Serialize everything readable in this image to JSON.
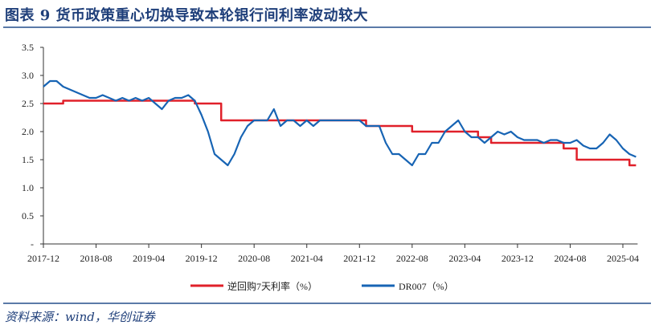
{
  "title": "图表 9   货币政策重心切换导致本轮银行间利率波动较大",
  "source": "资料来源：wind，华创证券",
  "chart_data": {
    "type": "line",
    "title": "货币政策重心切换导致本轮银行间利率波动较大",
    "ylim": [
      0,
      3.5
    ],
    "yticks": [
      "-",
      "0.5",
      "1.0",
      "1.5",
      "2.0",
      "2.5",
      "3.0",
      "3.5"
    ],
    "xticks": [
      "2017-12",
      "2018-08",
      "2019-04",
      "2019-12",
      "2020-08",
      "2021-04",
      "2021-12",
      "2022-08",
      "2023-04",
      "2023-12",
      "2024-08",
      "2025-04"
    ],
    "xrange": [
      "2017-12",
      "2025-06"
    ],
    "legend_position": "bottom",
    "series": [
      {
        "name": "逆回购7天利率（%）",
        "color": "#e0202a",
        "step": true,
        "points": [
          [
            "2017-12",
            2.5
          ],
          [
            "2018-03",
            2.55
          ],
          [
            "2019-11",
            2.5
          ],
          [
            "2020-03",
            2.2
          ],
          [
            "2022-01",
            2.1
          ],
          [
            "2022-08",
            2.0
          ],
          [
            "2023-06",
            1.9
          ],
          [
            "2023-08",
            1.8
          ],
          [
            "2024-07",
            1.7
          ],
          [
            "2024-09",
            1.5
          ],
          [
            "2025-05",
            1.4
          ],
          [
            "2025-06",
            1.4
          ]
        ]
      },
      {
        "name": "DR007（%）",
        "color": "#1764b4",
        "step": false,
        "start": "2017-12",
        "values": [
          2.8,
          2.9,
          2.9,
          2.8,
          2.75,
          2.7,
          2.65,
          2.6,
          2.6,
          2.65,
          2.6,
          2.55,
          2.6,
          2.55,
          2.6,
          2.55,
          2.6,
          2.5,
          2.4,
          2.55,
          2.6,
          2.6,
          2.65,
          2.55,
          2.3,
          2.0,
          1.6,
          1.5,
          1.4,
          1.6,
          1.9,
          2.1,
          2.2,
          2.2,
          2.2,
          2.4,
          2.1,
          2.2,
          2.2,
          2.1,
          2.2,
          2.1,
          2.2,
          2.2,
          2.2,
          2.2,
          2.2,
          2.2,
          2.2,
          2.1,
          2.1,
          2.1,
          1.8,
          1.6,
          1.6,
          1.5,
          1.4,
          1.6,
          1.6,
          1.8,
          1.8,
          2.0,
          2.1,
          2.2,
          2.0,
          1.9,
          1.9,
          1.8,
          1.9,
          2.0,
          1.95,
          2.0,
          1.9,
          1.85,
          1.85,
          1.85,
          1.8,
          1.85,
          1.85,
          1.8,
          1.8,
          1.85,
          1.75,
          1.7,
          1.7,
          1.8,
          1.95,
          1.85,
          1.7,
          1.6,
          1.55
        ]
      }
    ]
  }
}
